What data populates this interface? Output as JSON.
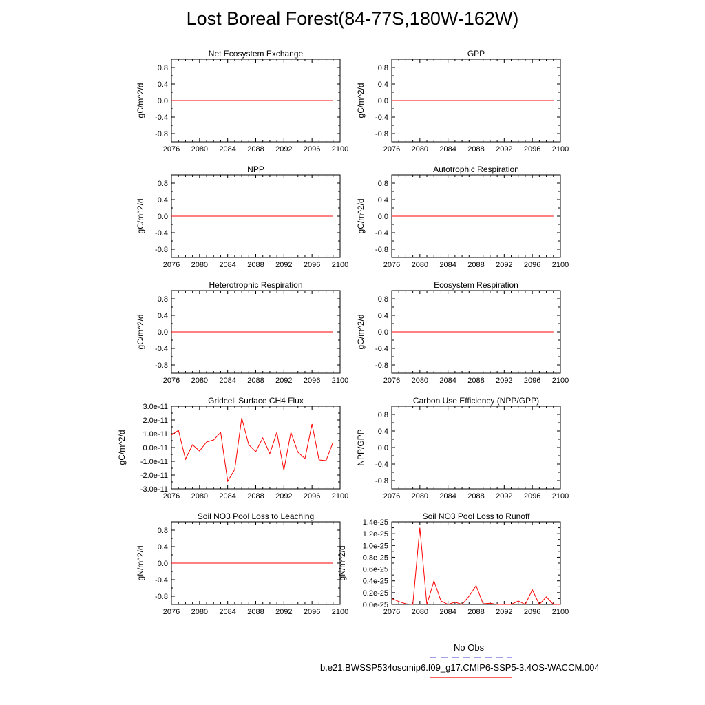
{
  "title": "Lost Boreal Forest(84-77S,180W-162W)",
  "colors": {
    "model": "#ff0000",
    "obs": "#6666dd",
    "axis": "#000000"
  },
  "legend": {
    "obs_label": "No Obs",
    "model_label": "b.e21.BWSSP534oscmip6.f09_g17.CMIP6-SSP5-3.4OS-WACCM.004"
  },
  "chart_data": [
    {
      "type": "line",
      "title": "Net Ecosystem Exchange",
      "ylabel": "gC/m^2/d",
      "xlim": [
        2076,
        2100
      ],
      "ylim": [
        -1,
        1
      ],
      "xticks": [
        "2076",
        "2080",
        "2084",
        "2088",
        "2092",
        "2096",
        "2100"
      ],
      "yticks": [
        "-0.8",
        "-0.4",
        "0.0",
        "0.4",
        "0.8"
      ],
      "x": [
        2076,
        2099
      ],
      "y": [
        0,
        0
      ]
    },
    {
      "type": "line",
      "title": "GPP",
      "ylabel": "gC/m^2/d",
      "xlim": [
        2076,
        2100
      ],
      "ylim": [
        -1,
        1
      ],
      "xticks": [
        "2076",
        "2080",
        "2084",
        "2088",
        "2092",
        "2096",
        "2100"
      ],
      "yticks": [
        "-0.8",
        "-0.4",
        "0.0",
        "0.4",
        "0.8"
      ],
      "x": [
        2076,
        2099
      ],
      "y": [
        0,
        0
      ]
    },
    {
      "type": "line",
      "title": "NPP",
      "ylabel": "gC/m^2/d",
      "xlim": [
        2076,
        2100
      ],
      "ylim": [
        -1,
        1
      ],
      "xticks": [
        "2076",
        "2080",
        "2084",
        "2088",
        "2092",
        "2096",
        "2100"
      ],
      "yticks": [
        "-0.8",
        "-0.4",
        "0.0",
        "0.4",
        "0.8"
      ],
      "x": [
        2076,
        2099
      ],
      "y": [
        0,
        0
      ]
    },
    {
      "type": "line",
      "title": "Autotrophic Respiration",
      "ylabel": "gC/m^2/d",
      "xlim": [
        2076,
        2100
      ],
      "ylim": [
        -1,
        1
      ],
      "xticks": [
        "2076",
        "2080",
        "2084",
        "2088",
        "2092",
        "2096",
        "2100"
      ],
      "yticks": [
        "-0.8",
        "-0.4",
        "0.0",
        "0.4",
        "0.8"
      ],
      "x": [
        2076,
        2099
      ],
      "y": [
        0,
        0
      ]
    },
    {
      "type": "line",
      "title": "Heterotrophic Respiration",
      "ylabel": "gC/m^2/d",
      "xlim": [
        2076,
        2100
      ],
      "ylim": [
        -1,
        1
      ],
      "xticks": [
        "2076",
        "2080",
        "2084",
        "2088",
        "2092",
        "2096",
        "2100"
      ],
      "yticks": [
        "-0.8",
        "-0.4",
        "0.0",
        "0.4",
        "0.8"
      ],
      "x": [
        2076,
        2099
      ],
      "y": [
        0,
        0
      ]
    },
    {
      "type": "line",
      "title": "Ecosystem Respiration",
      "ylabel": "gC/m^2/d",
      "xlim": [
        2076,
        2100
      ],
      "ylim": [
        -1,
        1
      ],
      "xticks": [
        "2076",
        "2080",
        "2084",
        "2088",
        "2092",
        "2096",
        "2100"
      ],
      "yticks": [
        "-0.8",
        "-0.4",
        "0.0",
        "0.4",
        "0.8"
      ],
      "x": [
        2076,
        2099
      ],
      "y": [
        0,
        0
      ]
    },
    {
      "type": "line",
      "title": "Gridcell Surface CH4 Flux",
      "ylabel": "gC/m^2/d",
      "xlim": [
        2076,
        2100
      ],
      "ylim": [
        -3e-11,
        3e-11
      ],
      "xticks": [
        "2076",
        "2080",
        "2084",
        "2088",
        "2092",
        "2096",
        "2100"
      ],
      "yticks": [
        "-3.0e-11",
        "-2.0e-11",
        "-1.0e-11",
        "0.0e-11",
        "1.0e-11",
        "2.0e-11",
        "3.0e-11"
      ],
      "x": [
        2076,
        2077,
        2078,
        2079,
        2080,
        2081,
        2082,
        2083,
        2084,
        2085,
        2086,
        2087,
        2088,
        2089,
        2090,
        2091,
        2092,
        2093,
        2094,
        2095,
        2096,
        2097,
        2098,
        2099
      ],
      "y": [
        9e-12,
        1.25e-11,
        -8.5e-12,
        2e-12,
        -2.5e-12,
        4e-12,
        5.5e-12,
        1.1e-11,
        -2.45e-11,
        -1.6e-11,
        2.15e-11,
        2e-12,
        -3e-12,
        7e-12,
        -4.5e-12,
        1.1e-11,
        -1.65e-11,
        1.1e-11,
        -3.5e-12,
        -8e-12,
        1.7e-11,
        -9e-12,
        -9.5e-12,
        4e-12
      ]
    },
    {
      "type": "line",
      "title": "Carbon Use Efficiency (NPP/GPP)",
      "ylabel": "NPP/GPP",
      "xlim": [
        2076,
        2100
      ],
      "ylim": [
        -1,
        1
      ],
      "xticks": [
        "2076",
        "2080",
        "2084",
        "2088",
        "2092",
        "2096",
        "2100"
      ],
      "yticks": [
        "-0.8",
        "-0.4",
        "0.0",
        "0.4",
        "0.8"
      ],
      "x": [],
      "y": []
    },
    {
      "type": "line",
      "title": "Soil NO3 Pool Loss to Leaching",
      "ylabel": "gN/m^2/d",
      "xlim": [
        2076,
        2100
      ],
      "ylim": [
        -1,
        1
      ],
      "xticks": [
        "2076",
        "2080",
        "2084",
        "2088",
        "2092",
        "2096",
        "2100"
      ],
      "yticks": [
        "-0.8",
        "-0.4",
        "0.0",
        "0.4",
        "0.8"
      ],
      "x": [
        2076,
        2099
      ],
      "y": [
        0,
        0
      ]
    },
    {
      "type": "line",
      "title": "Soil NO3 Pool Loss to Runoff",
      "ylabel": "gN/m^2/d",
      "xlim": [
        2076,
        2100
      ],
      "ylim": [
        0,
        1.4e-25
      ],
      "xticks": [
        "2076",
        "2080",
        "2084",
        "2088",
        "2092",
        "2096",
        "2100"
      ],
      "yticks": [
        "0.0e-25",
        "0.2e-25",
        "0.4e-25",
        "0.6e-25",
        "0.8e-25",
        "1.0e-25",
        "1.2e-25",
        "1.4e-25"
      ],
      "x": [
        2076,
        2077,
        2078,
        2079,
        2080,
        2081,
        2082,
        2083,
        2084,
        2085,
        2086,
        2087,
        2088,
        2089,
        2090,
        2091,
        2092,
        2093,
        2094,
        2095,
        2096,
        2097,
        2098,
        2099,
        2100
      ],
      "y": [
        1e-26,
        5e-27,
        1e-27,
        0.0,
        1.3e-25,
        0.0,
        4e-26,
        6e-27,
        0.0,
        4e-27,
        0.0,
        1.4e-26,
        3.2e-26,
        1e-27,
        2e-27,
        0.0,
        0.0,
        0.0,
        6e-27,
        0.0,
        2.5e-26,
        0.0,
        1.3e-26,
        0.0,
        0.0
      ]
    }
  ]
}
